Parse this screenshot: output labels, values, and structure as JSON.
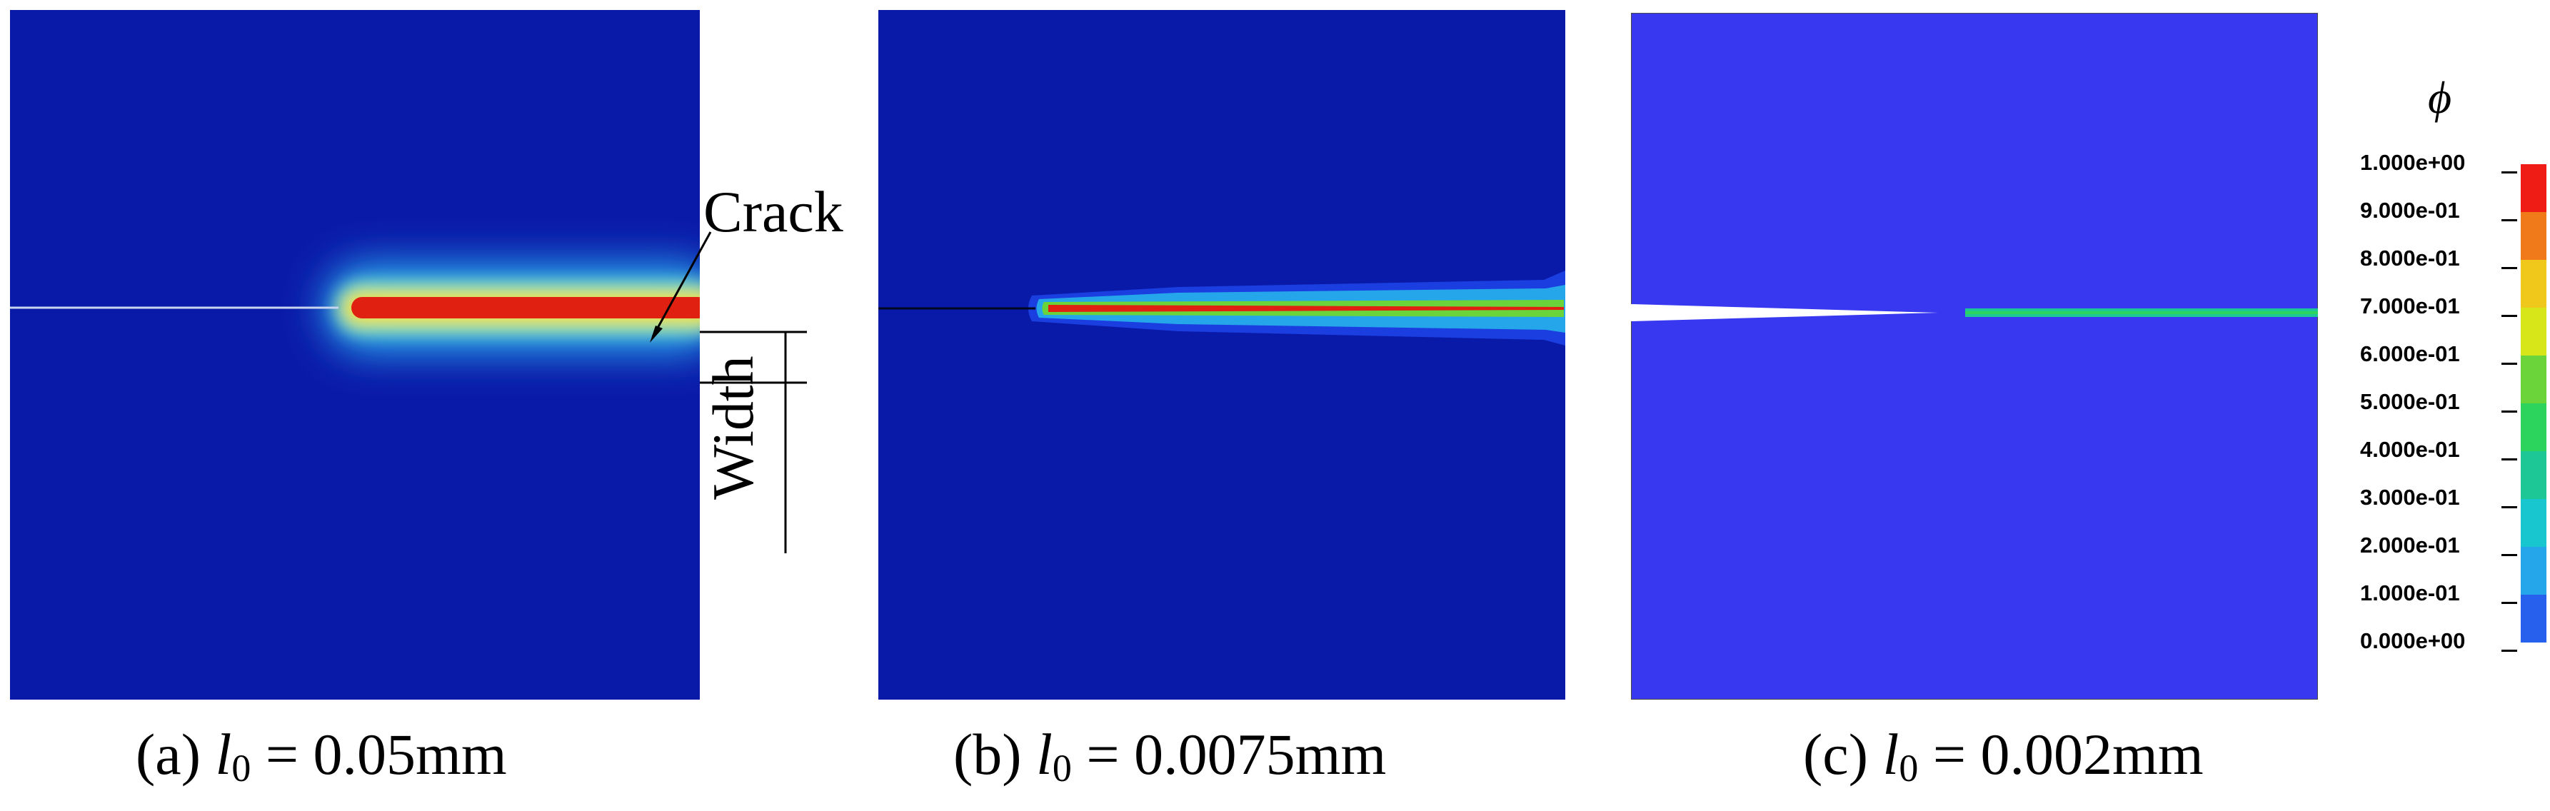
{
  "panels": [
    {
      "id": "a",
      "caption_prefix": "(a) ",
      "caption_var": "l",
      "caption_sub": "0",
      "caption_suffix": " = 0.05mm"
    },
    {
      "id": "b",
      "caption_prefix": "(b) ",
      "caption_var": "l",
      "caption_sub": "0",
      "caption_suffix": " = 0.0075mm"
    },
    {
      "id": "c",
      "caption_prefix": "(c) ",
      "caption_var": "l",
      "caption_sub": "0",
      "caption_suffix": " = 0.002mm"
    }
  ],
  "annotations": {
    "crack": "Crack",
    "width": "Width"
  },
  "legend": {
    "title": "ϕ",
    "labels": [
      "1.000e+00",
      "9.000e-01",
      "8.000e-01",
      "7.000e-01",
      "6.000e-01",
      "5.000e-01",
      "4.000e-01",
      "3.000e-01",
      "2.000e-01",
      "1.000e-01",
      "0.000e+00"
    ],
    "colors": [
      "#ee1c14",
      "#f07a1a",
      "#f0c81c",
      "#d6e618",
      "#6ad43a",
      "#2cd35c",
      "#1ec896",
      "#18c6d0",
      "#26a6ea",
      "#2860ee",
      "#1a1aee"
    ]
  }
}
